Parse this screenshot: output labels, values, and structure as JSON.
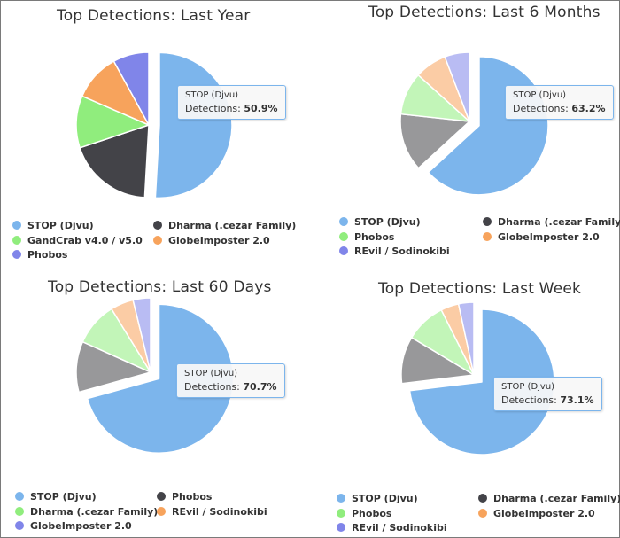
{
  "chart_data": [
    {
      "type": "pie",
      "title": "Top Detections: Last Year",
      "categories": [
        "STOP (Djvu)",
        "Dharma (.cezar Family)",
        "GandCrab v4.0 / v5.0",
        "GlobeImposter 2.0",
        "Phobos"
      ],
      "values": [
        50.9,
        19.0,
        11.6,
        10.5,
        8.0
      ],
      "colors": [
        "#7cb5ec",
        "#434348",
        "#90ed7d",
        "#f7a35c",
        "#8085e9"
      ],
      "sliced_index": 0,
      "tooltip": {
        "name": "STOP (Djvu)",
        "label": "Detections:",
        "value": "50.9%"
      },
      "legend": [
        "STOP (Djvu)",
        "Dharma (.cezar Family)",
        "GandCrab v4.0 / v5.0",
        "GlobeImposter 2.0",
        "Phobos"
      ]
    },
    {
      "type": "pie",
      "title": "Top Detections: Last 6 Months",
      "categories": [
        "STOP (Djvu)",
        "Dharma (.cezar Family)",
        "Phobos",
        "GlobeImposter 2.0",
        "REvil / Sodinokibi"
      ],
      "values": [
        63.2,
        13.5,
        10.0,
        7.5,
        5.8
      ],
      "colors": [
        "#7cb5ec",
        "#434348",
        "#90ed7d",
        "#f7a35c",
        "#8085e9"
      ],
      "sliced_index": 0,
      "tooltip": {
        "name": "STOP (Djvu)",
        "label": "Detections:",
        "value": "63.2%"
      },
      "legend": [
        "STOP (Djvu)",
        "Dharma (.cezar Family)",
        "Phobos",
        "GlobeImposter 2.0",
        "REvil / Sodinokibi"
      ]
    },
    {
      "type": "pie",
      "title": "Top Detections: Last 60 Days",
      "categories": [
        "STOP (Djvu)",
        "Phobos",
        "Dharma (.cezar Family)",
        "REvil / Sodinokibi",
        "GlobeImposter 2.0"
      ],
      "values": [
        70.7,
        11.0,
        9.5,
        5.0,
        3.8
      ],
      "colors": [
        "#7cb5ec",
        "#434348",
        "#90ed7d",
        "#f7a35c",
        "#8085e9"
      ],
      "sliced_index": 0,
      "tooltip": {
        "name": "STOP (Djvu)",
        "label": "Detections:",
        "value": "70.7%"
      },
      "legend": [
        "STOP (Djvu)",
        "Phobos",
        "Dharma (.cezar Family)",
        "REvil / Sodinokibi",
        "GlobeImposter 2.0"
      ]
    },
    {
      "type": "pie",
      "title": "Top Detections: Last Week",
      "categories": [
        "STOP (Djvu)",
        "Dharma (.cezar Family)",
        "Phobos",
        "GlobeImposter 2.0",
        "REvil / Sodinokibi"
      ],
      "values": [
        73.1,
        10.5,
        9.0,
        4.0,
        3.4
      ],
      "colors": [
        "#7cb5ec",
        "#434348",
        "#90ed7d",
        "#f7a35c",
        "#8085e9"
      ],
      "sliced_index": 0,
      "tooltip": {
        "name": "STOP (Djvu)",
        "label": "Detections:",
        "value": "73.1%"
      },
      "legend": [
        "STOP (Djvu)",
        "Dharma (.cezar Family)",
        "Phobos",
        "GlobeImposter 2.0",
        "REvil / Sodinokibi"
      ]
    }
  ]
}
